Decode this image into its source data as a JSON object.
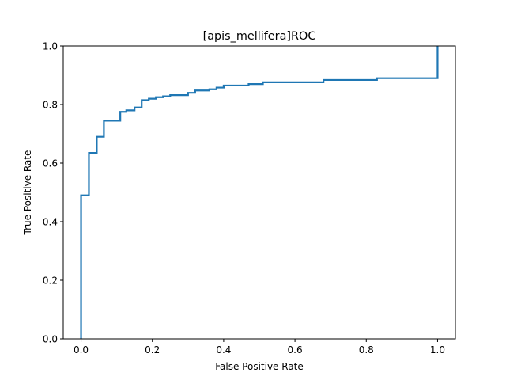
{
  "chart_data": {
    "type": "line",
    "title": "[apis_mellifera]ROC",
    "xlabel": "False Positive Rate",
    "ylabel": "True Positive Rate",
    "xlim": [
      -0.05,
      1.05
    ],
    "ylim": [
      0.0,
      1.0
    ],
    "x_ticks": [
      0.0,
      0.2,
      0.4,
      0.6,
      0.8,
      1.0
    ],
    "x_tick_labels": [
      "0.0",
      "0.2",
      "0.4",
      "0.6",
      "0.8",
      "1.0"
    ],
    "y_ticks": [
      0.0,
      0.2,
      0.4,
      0.6,
      0.8,
      1.0
    ],
    "y_tick_labels": [
      "0.0",
      "0.2",
      "0.4",
      "0.6",
      "0.8",
      "1.0"
    ],
    "grid": false,
    "legend": null,
    "series": [
      {
        "color": "#1f77b4",
        "step": true,
        "x": [
          0.0,
          0.0,
          0.022,
          0.022,
          0.044,
          0.044,
          0.064,
          0.064,
          0.11,
          0.11,
          0.127,
          0.127,
          0.15,
          0.15,
          0.17,
          0.17,
          0.19,
          0.19,
          0.21,
          0.21,
          0.23,
          0.23,
          0.25,
          0.25,
          0.3,
          0.3,
          0.32,
          0.32,
          0.36,
          0.36,
          0.38,
          0.38,
          0.4,
          0.4,
          0.47,
          0.47,
          0.51,
          0.51,
          0.68,
          0.68,
          0.83,
          0.83,
          1.0,
          1.0
        ],
        "y": [
          0.0,
          0.49,
          0.49,
          0.635,
          0.635,
          0.69,
          0.69,
          0.745,
          0.745,
          0.775,
          0.775,
          0.78,
          0.78,
          0.79,
          0.79,
          0.815,
          0.815,
          0.82,
          0.82,
          0.825,
          0.825,
          0.828,
          0.828,
          0.832,
          0.832,
          0.84,
          0.84,
          0.848,
          0.848,
          0.852,
          0.852,
          0.858,
          0.858,
          0.865,
          0.865,
          0.87,
          0.87,
          0.876,
          0.876,
          0.884,
          0.884,
          0.89,
          0.89,
          1.0
        ]
      }
    ]
  }
}
